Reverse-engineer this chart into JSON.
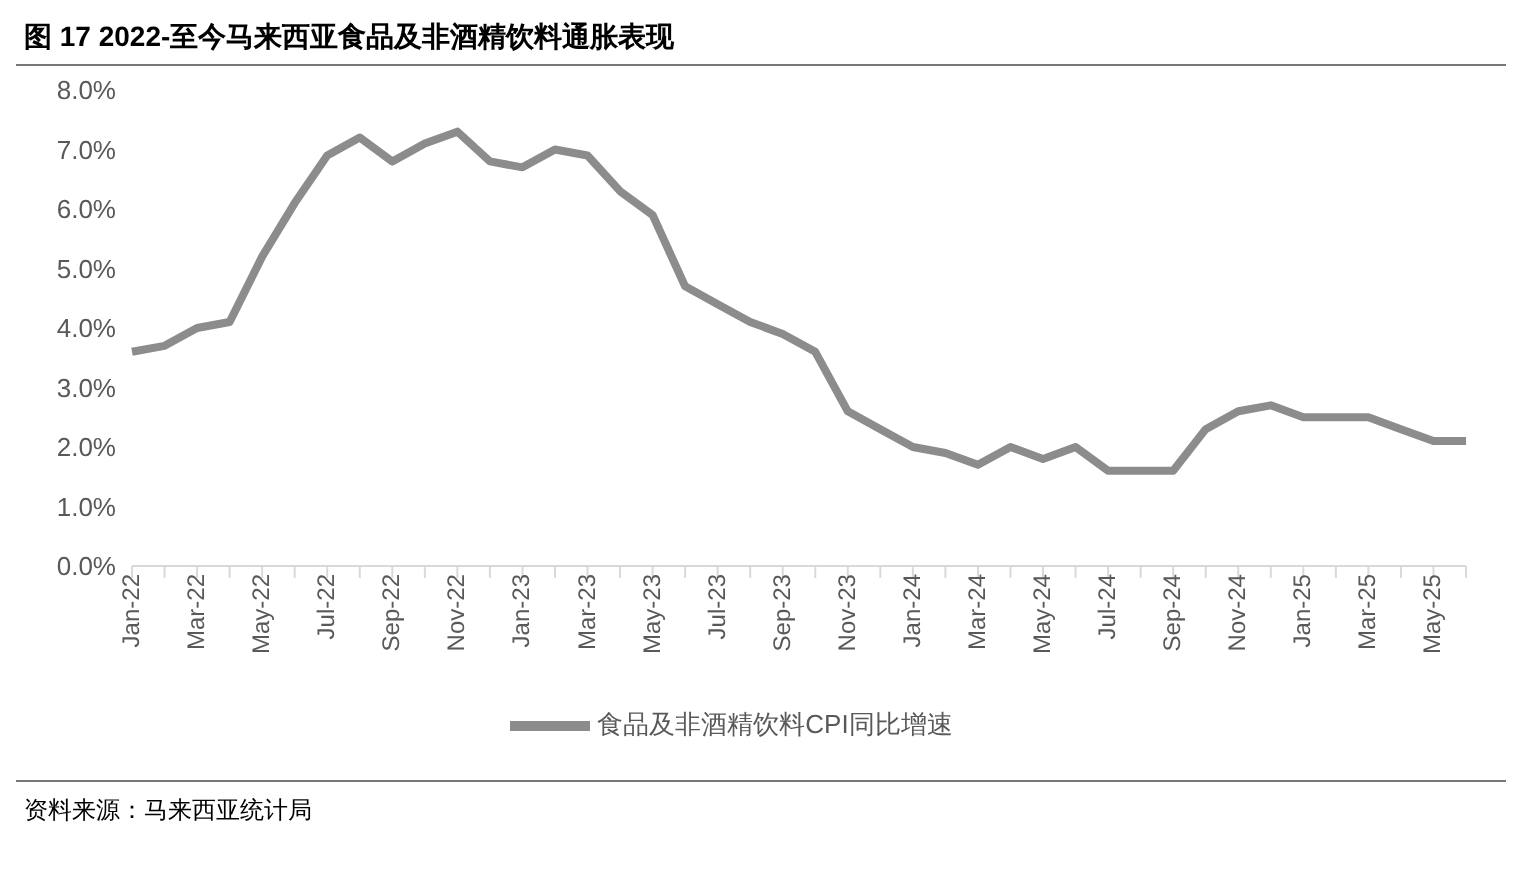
{
  "chart_data": {
    "type": "line",
    "title": "图 17 2022-至今马来西亚食品及非酒精饮料通胀表现",
    "categories": [
      "Jan-22",
      null,
      "Mar-22",
      null,
      "May-22",
      null,
      "Jul-22",
      null,
      "Sep-22",
      null,
      "Nov-22",
      null,
      "Jan-23",
      null,
      "Mar-23",
      null,
      "May-23",
      null,
      "Jul-23",
      null,
      "Sep-23",
      null,
      "Nov-23",
      null,
      "Jan-24",
      null,
      "Mar-24",
      null,
      "May-24",
      null,
      "Jul-24",
      null,
      "Sep-24",
      null,
      "Nov-24",
      null,
      "Jan-25",
      null,
      "Mar-25",
      null,
      "May-25",
      null
    ],
    "series": [
      {
        "name": "食品及非酒精饮料CPI同比增速",
        "color": "#8c8c8c",
        "values": [
          3.6,
          3.7,
          4.0,
          4.1,
          5.2,
          6.1,
          6.9,
          7.2,
          6.8,
          7.1,
          7.3,
          6.8,
          6.7,
          7.0,
          6.9,
          6.3,
          5.9,
          4.7,
          4.4,
          4.1,
          3.9,
          3.6,
          2.6,
          2.3,
          2.0,
          1.9,
          1.7,
          2.0,
          1.8,
          2.0,
          1.6,
          1.6,
          1.6,
          2.3,
          2.6,
          2.7,
          2.5,
          2.5,
          2.5,
          2.3,
          2.1,
          2.1
        ]
      }
    ],
    "ylim": [
      0,
      8
    ],
    "yticks": [
      {
        "value": 0,
        "label": "0.0%"
      },
      {
        "value": 1,
        "label": "1.0%"
      },
      {
        "value": 2,
        "label": "2.0%"
      },
      {
        "value": 3,
        "label": "3.0%"
      },
      {
        "value": 4,
        "label": "4.0%"
      },
      {
        "value": 5,
        "label": "5.0%"
      },
      {
        "value": 6,
        "label": "6.0%"
      },
      {
        "value": 7,
        "label": "7.0%"
      },
      {
        "value": 8,
        "label": "8.0%"
      }
    ],
    "grid": false,
    "legend": "bottom",
    "marker": "none",
    "line_style": "solid",
    "annotations": [
      "资料来源：马来西亚统计局"
    ]
  }
}
